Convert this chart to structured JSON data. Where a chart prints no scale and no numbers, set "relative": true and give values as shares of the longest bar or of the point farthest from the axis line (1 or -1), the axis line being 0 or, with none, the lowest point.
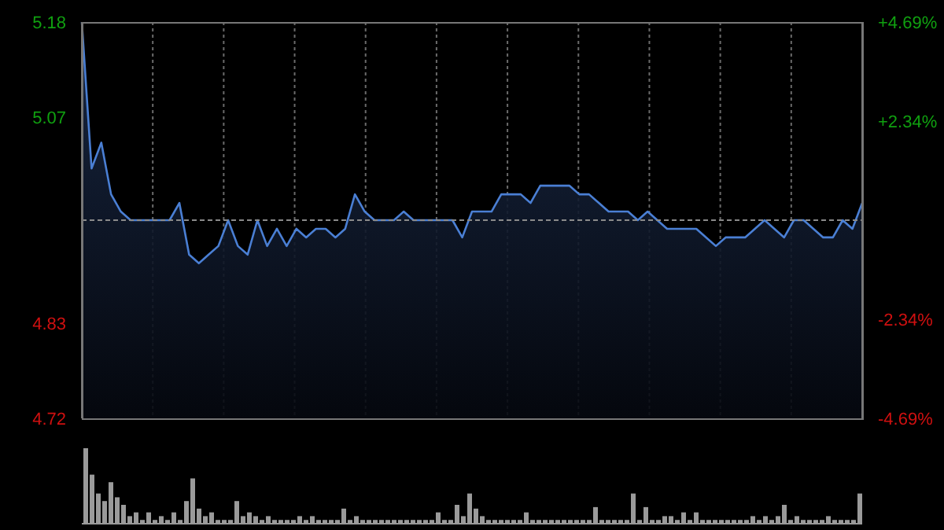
{
  "chart_data": [
    {
      "type": "area",
      "tick_labels": "y",
      "grid": true,
      "categories": [
        null,
        null,
        null,
        null,
        null,
        null,
        null,
        null,
        null,
        null,
        null,
        null,
        null,
        null,
        null,
        null,
        null,
        null,
        null,
        null,
        null,
        null,
        null,
        null,
        null,
        null,
        null,
        null,
        null,
        null,
        null,
        null,
        null,
        null,
        null,
        null,
        null,
        null,
        null,
        null,
        null,
        null,
        null,
        null,
        null,
        null,
        null,
        null,
        null,
        null,
        null,
        null,
        null,
        null,
        null,
        null,
        null,
        null,
        null,
        null,
        null,
        null,
        null,
        null,
        null,
        null,
        null,
        null,
        null,
        null,
        null,
        null,
        null,
        null,
        null,
        null,
        null,
        null,
        null,
        null,
        null
      ],
      "series": [
        {
          "color": "#4a7fd4",
          "values": [
            5.18,
            5.01,
            5.04,
            4.98,
            4.96,
            4.95,
            4.95,
            4.95,
            4.95,
            4.95,
            4.97,
            4.91,
            4.9,
            4.91,
            4.92,
            4.95,
            4.92,
            4.91,
            4.95,
            4.92,
            4.94,
            4.92,
            4.94,
            4.93,
            4.94,
            4.94,
            4.93,
            4.94,
            4.98,
            4.96,
            4.95,
            4.95,
            4.95,
            4.96,
            4.95,
            4.95,
            4.95,
            4.95,
            4.95,
            4.93,
            4.96,
            4.96,
            4.96,
            4.98,
            4.98,
            4.98,
            4.97,
            4.99,
            4.99,
            4.99,
            4.99,
            4.98,
            4.98,
            4.97,
            4.96,
            4.96,
            4.96,
            4.95,
            4.96,
            4.95,
            4.94,
            4.94,
            4.94,
            4.94,
            4.93,
            4.92,
            4.93,
            4.93,
            4.93,
            4.94,
            4.95,
            4.94,
            4.93,
            4.95,
            4.95,
            4.94,
            4.93,
            4.93,
            4.95,
            4.94,
            4.97
          ]
        }
      ],
      "ylim": [
        4.72,
        5.18
      ],
      "yticks": [
        4.72,
        4.83,
        5.07,
        5.18
      ],
      "y2lim": [
        -4.69,
        4.69
      ],
      "y2ticks": [
        {
          "value": -4.69,
          "label": "-4.69%"
        },
        {
          "value": -2.34,
          "label": "-2.34%"
        },
        {
          "value": 2.34,
          "label": "+2.34%"
        },
        {
          "value": 4.69,
          "label": "+4.69%"
        }
      ],
      "ref_lines": [
        {
          "axis": "y",
          "value": 4.95,
          "color": "#8a8a8a",
          "line_style": "dashed"
        }
      ]
    },
    {
      "type": "bar",
      "relative": true,
      "tick_labels": false,
      "color": "#9a9a9a",
      "categories": [
        null,
        null,
        null,
        null,
        null,
        null,
        null,
        null,
        null,
        null,
        null,
        null,
        null,
        null,
        null,
        null,
        null,
        null,
        null,
        null,
        null,
        null,
        null,
        null,
        null,
        null,
        null,
        null,
        null,
        null,
        null,
        null,
        null,
        null,
        null,
        null,
        null,
        null,
        null,
        null,
        null,
        null,
        null,
        null,
        null,
        null,
        null,
        null,
        null,
        null,
        null,
        null,
        null,
        null,
        null,
        null,
        null,
        null,
        null,
        null,
        null,
        null,
        null,
        null,
        null,
        null,
        null,
        null,
        null,
        null,
        null,
        null,
        null,
        null,
        null,
        null,
        null,
        null,
        null,
        null,
        null,
        null,
        null,
        null,
        null,
        null,
        null,
        null,
        null,
        null,
        null,
        null,
        null,
        null,
        null,
        null,
        null,
        null,
        null,
        null,
        null,
        null,
        null,
        null,
        null,
        null,
        null,
        null,
        null,
        null,
        null,
        null,
        null,
        null,
        null,
        null,
        null,
        null,
        null,
        null,
        null,
        null,
        null,
        null
      ],
      "values": [
        1,
        0.65,
        0.4,
        0.3,
        0.55,
        0.35,
        0.25,
        0.1,
        0.15,
        0.05,
        0.15,
        0.05,
        0.1,
        0.05,
        0.15,
        0.05,
        0.3,
        0.6,
        0.2,
        0.1,
        0.15,
        0.05,
        0.05,
        0.05,
        0.3,
        0.1,
        0.15,
        0.1,
        0.05,
        0.1,
        0.05,
        0.05,
        0.05,
        0.05,
        0.1,
        0.05,
        0.1,
        0.05,
        0.05,
        0.05,
        0.05,
        0.2,
        0.05,
        0.1,
        0.05,
        0.05,
        0.05,
        0.05,
        0.05,
        0.05,
        0.05,
        0.05,
        0.05,
        0.05,
        0.05,
        0.05,
        0.15,
        0.05,
        0.05,
        0.25,
        0.1,
        0.4,
        0.2,
        0.1,
        0.05,
        0.05,
        0.05,
        0.05,
        0.05,
        0.05,
        0.15,
        0.05,
        0.05,
        0.05,
        0.05,
        0.05,
        0.05,
        0.05,
        0.05,
        0.05,
        0.05,
        0.22,
        0.05,
        0.05,
        0.05,
        0.05,
        0.05,
        0.4,
        0.05,
        0.22,
        0.05,
        0.05,
        0.1,
        0.1,
        0.05,
        0.15,
        0.05,
        0.15,
        0.05,
        0.05,
        0.05,
        0.05,
        0.05,
        0.05,
        0.05,
        0.05,
        0.1,
        0.05,
        0.1,
        0.05,
        0.1,
        0.25,
        0.05,
        0.1,
        0.05,
        0.05,
        0.05,
        0.05,
        0.1,
        0.05,
        0.05,
        0.05,
        0.05,
        0.4
      ]
    }
  ]
}
